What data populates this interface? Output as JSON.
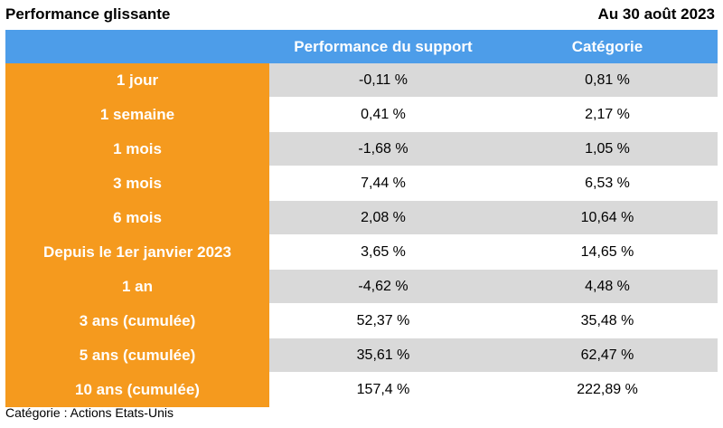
{
  "header": {
    "title": "Performance glissante",
    "date": "Au 30 août 2023"
  },
  "table": {
    "columns": [
      "",
      "Performance du support",
      "Catégorie"
    ],
    "rows": [
      {
        "label": "1 jour",
        "support": "-0,11 %",
        "categorie": "0,81 %"
      },
      {
        "label": "1 semaine",
        "support": "0,41 %",
        "categorie": "2,17 %"
      },
      {
        "label": "1 mois",
        "support": "-1,68 %",
        "categorie": "1,05 %"
      },
      {
        "label": "3 mois",
        "support": "7,44 %",
        "categorie": "6,53 %"
      },
      {
        "label": "6 mois",
        "support": "2,08 %",
        "categorie": "10,64 %"
      },
      {
        "label": "Depuis le 1er janvier 2023",
        "support": "3,65 %",
        "categorie": "14,65 %"
      },
      {
        "label": "1 an",
        "support": "-4,62 %",
        "categorie": "4,48 %"
      },
      {
        "label": "3 ans (cumulée)",
        "support": "52,37 %",
        "categorie": "35,48 %"
      },
      {
        "label": "5 ans (cumulée)",
        "support": "35,61 %",
        "categorie": "62,47 %"
      },
      {
        "label": "10 ans (cumulée)",
        "support": "157,4 %",
        "categorie": "222,89 %"
      }
    ]
  },
  "footnote": "Catégorie : Actions Etats-Unis",
  "colors": {
    "header_blue": "#4d9de9",
    "label_orange": "#f59a1e",
    "row_gray": "#d9d9d9"
  }
}
